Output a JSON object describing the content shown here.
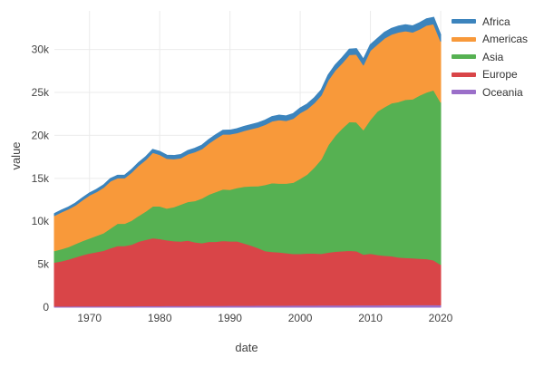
{
  "chart_data": {
    "type": "area",
    "stacked": true,
    "xlabel": "date",
    "ylabel": "value",
    "xlim": [
      1965,
      2020
    ],
    "ylim": [
      0,
      34500
    ],
    "x_ticks": [
      1970,
      1980,
      1990,
      2000,
      2010,
      2020
    ],
    "x_tick_labels": [
      "1970",
      "1980",
      "1990",
      "2000",
      "2010",
      "2020"
    ],
    "y_ticks": [
      0,
      5000,
      10000,
      15000,
      20000,
      25000,
      30000
    ],
    "y_tick_labels": [
      "0",
      "5k",
      "10k",
      "15k",
      "20k",
      "25k",
      "30k"
    ],
    "grid": true,
    "legend_position": "right",
    "x": [
      1965,
      1966,
      1967,
      1968,
      1969,
      1970,
      1971,
      1972,
      1973,
      1974,
      1975,
      1976,
      1977,
      1978,
      1979,
      1980,
      1981,
      1982,
      1983,
      1984,
      1985,
      1986,
      1987,
      1988,
      1989,
      1990,
      1991,
      1992,
      1993,
      1994,
      1995,
      1996,
      1997,
      1998,
      1999,
      2000,
      2001,
      2002,
      2003,
      2004,
      2005,
      2006,
      2007,
      2008,
      2009,
      2010,
      2011,
      2012,
      2013,
      2014,
      2015,
      2016,
      2017,
      2018,
      2019,
      2020
    ],
    "series": [
      {
        "name": "Oceania",
        "color": "#9b6fc9",
        "values": [
          120,
          122,
          124,
          127,
          130,
          133,
          136,
          139,
          142,
          145,
          148,
          151,
          154,
          157,
          160,
          163,
          166,
          169,
          172,
          175,
          178,
          181,
          184,
          187,
          190,
          193,
          196,
          199,
          202,
          205,
          208,
          211,
          214,
          217,
          220,
          223,
          226,
          229,
          232,
          235,
          238,
          241,
          244,
          247,
          250,
          253,
          256,
          259,
          262,
          265,
          268,
          271,
          274,
          277,
          280,
          270
        ]
      },
      {
        "name": "Europe",
        "color": "#d94548",
        "values": [
          5100,
          5250,
          5450,
          5700,
          5950,
          6150,
          6300,
          6450,
          6750,
          7000,
          7000,
          7150,
          7500,
          7700,
          7900,
          7800,
          7650,
          7550,
          7500,
          7600,
          7400,
          7300,
          7450,
          7450,
          7550,
          7500,
          7500,
          7250,
          7000,
          6700,
          6350,
          6250,
          6200,
          6100,
          6000,
          6000,
          6050,
          6050,
          6000,
          6150,
          6250,
          6300,
          6350,
          6300,
          5900,
          6000,
          5850,
          5750,
          5700,
          5550,
          5500,
          5450,
          5400,
          5350,
          5200,
          4700
        ]
      },
      {
        "name": "Asia",
        "color": "#56b152",
        "values": [
          1350,
          1400,
          1450,
          1550,
          1650,
          1750,
          1900,
          2050,
          2300,
          2600,
          2600,
          2800,
          3000,
          3300,
          3700,
          3800,
          3700,
          3950,
          4300,
          4500,
          4800,
          5200,
          5500,
          5800,
          6000,
          6000,
          6200,
          6600,
          6900,
          7200,
          7700,
          8000,
          8000,
          8100,
          8300,
          8750,
          9200,
          10000,
          11000,
          12500,
          13500,
          14300,
          15000,
          15000,
          14500,
          15600,
          16700,
          17300,
          17800,
          18100,
          18400,
          18500,
          19000,
          19400,
          19800,
          18900
        ]
      },
      {
        "name": "Americas",
        "color": "#f8993a",
        "values": [
          4100,
          4300,
          4400,
          4500,
          4750,
          5000,
          5100,
          5300,
          5500,
          5300,
          5300,
          5600,
          5850,
          6000,
          6250,
          6000,
          5800,
          5600,
          5400,
          5550,
          5700,
          5750,
          5950,
          6200,
          6400,
          6450,
          6400,
          6500,
          6650,
          6850,
          7000,
          7200,
          7400,
          7300,
          7450,
          7650,
          7600,
          7500,
          7450,
          7550,
          7600,
          7600,
          7800,
          7900,
          7550,
          8050,
          7800,
          8000,
          8000,
          8100,
          8000,
          7800,
          7700,
          7800,
          7700,
          7100
        ]
      },
      {
        "name": "Africa",
        "color": "#3c84bd",
        "values": [
          200,
          210,
          220,
          230,
          240,
          250,
          260,
          270,
          280,
          290,
          300,
          310,
          320,
          330,
          340,
          350,
          360,
          370,
          380,
          390,
          400,
          410,
          420,
          430,
          440,
          450,
          460,
          470,
          480,
          490,
          500,
          510,
          520,
          530,
          540,
          550,
          560,
          570,
          580,
          590,
          600,
          610,
          620,
          630,
          640,
          650,
          660,
          670,
          680,
          690,
          700,
          710,
          720,
          730,
          740,
          700
        ]
      }
    ],
    "legend_order": [
      "Africa",
      "Americas",
      "Asia",
      "Europe",
      "Oceania"
    ]
  }
}
